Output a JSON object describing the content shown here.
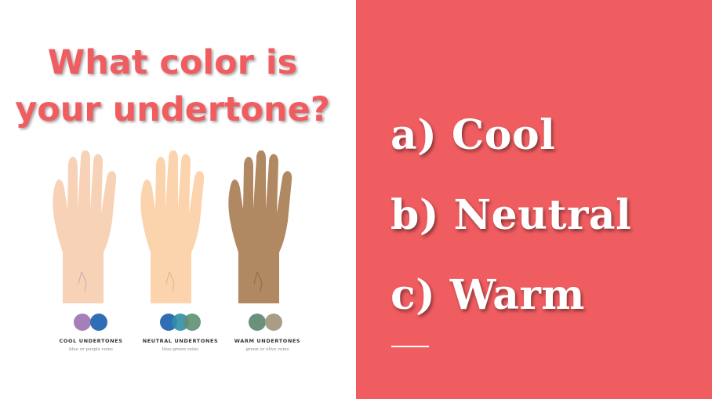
{
  "question": {
    "line1": "What color is",
    "line2": "your undertone?"
  },
  "options": [
    "a) Cool",
    "b) Neutral",
    "c) Warm"
  ],
  "illustration": {
    "hands": [
      {
        "caption": "COOL UNDERTONES",
        "subcaption": "blue or purple veins",
        "skin": "#f8d2b6",
        "swatches": [
          "#a57fb8",
          "#2f6db4"
        ]
      },
      {
        "caption": "NEUTRAL UNDERTONES",
        "subcaption": "blue-green veins",
        "skin": "#fbd4ae",
        "swatches": [
          "#2f6db4",
          "#2f8fa6",
          "#5e8f74"
        ]
      },
      {
        "caption": "WARM UNDERTONES",
        "subcaption": "green or olive veins",
        "skin": "#b08862",
        "swatches": [
          "#6b907b",
          "#a99d87"
        ]
      }
    ]
  },
  "colors": {
    "accent": "#f05d60",
    "question_text": "#f05d60",
    "option_text": "#ffffff",
    "background": "#ffffff"
  }
}
